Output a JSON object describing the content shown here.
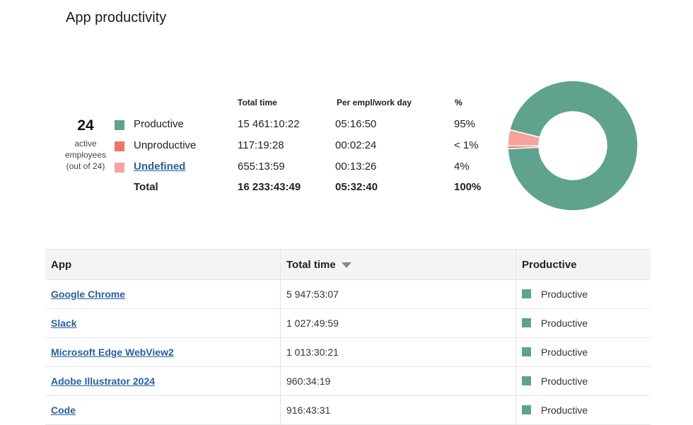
{
  "page": {
    "title": "App productivity"
  },
  "summary": {
    "active_count": "24",
    "active_line1": "active",
    "active_line2": "employees",
    "active_line3": "(out of 24)",
    "headers": {
      "total_time": "Total time",
      "per_empl": "Per empl/work day",
      "percent": "%"
    },
    "rows": [
      {
        "label": "Productive",
        "color": "#5fa38e",
        "total_time": "15 461:10:22",
        "per_empl": "05:16:50",
        "percent": "95%",
        "share": 0.952
      },
      {
        "label": "Unproductive",
        "color": "#f07468",
        "total_time": "117:19:28",
        "per_empl": "00:02:24",
        "percent": "< 1%",
        "share": 0.007
      },
      {
        "label": "Undefined",
        "color": "#f6a39b",
        "total_time": "655:13:59",
        "per_empl": "00:13:26",
        "percent": "4%",
        "share": 0.04
      }
    ],
    "total": {
      "label": "Total",
      "total_time": "16 233:43:49",
      "per_empl": "05:32:40",
      "percent": "100%"
    }
  },
  "table": {
    "headers": {
      "app": "App",
      "total_time": "Total time",
      "productive": "Productive"
    },
    "rows": [
      {
        "app": "Google Chrome",
        "total_time": "5 947:53:07",
        "status": "Productive"
      },
      {
        "app": "Slack",
        "total_time": "1 027:49:59",
        "status": "Productive"
      },
      {
        "app": "Microsoft Edge WebView2",
        "total_time": "1 013:30:21",
        "status": "Productive"
      },
      {
        "app": "Adobe Illustrator 2024",
        "total_time": "960:34:19",
        "status": "Productive"
      },
      {
        "app": "Code",
        "total_time": "916:43:31",
        "status": "Productive"
      }
    ],
    "status_color": "#5fa38e"
  },
  "icons": {
    "sort": "sort-descending-icon"
  }
}
